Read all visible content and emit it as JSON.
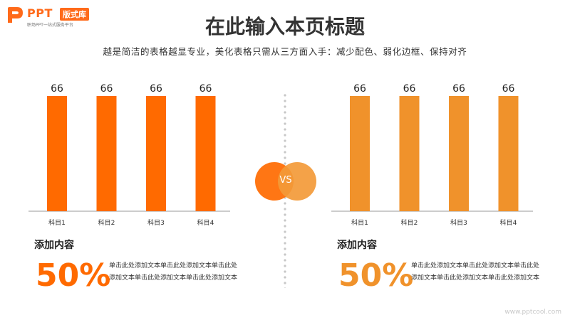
{
  "logo": {
    "brand": "PPT",
    "badge": "版式库",
    "tagline": "职场PPT一站式服务平台"
  },
  "header": {
    "title": "在此输入本页标题",
    "subtitle": "越是简洁的表格越显专业，美化表格只需从三方面入手：减少配色、弱化边框、保持对齐"
  },
  "vs": {
    "label": "VS"
  },
  "left_block": {
    "heading": "添加内容",
    "percent": "50%",
    "text": "单击此处添加文本单击此处添加文本单击此处添加文本单击此处添加文本单击此处添加文本"
  },
  "right_block": {
    "heading": "添加内容",
    "percent": "50%",
    "text": "单击此处添加文本单击此处添加文本单击此处添加文本单击此处添加文本单击此处添加文本"
  },
  "watermark": "www.pptcool.com",
  "colors": {
    "left_accent": "#ff6a00",
    "right_accent": "#f0922b"
  },
  "chart_data": [
    {
      "type": "bar",
      "categories": [
        "科目1",
        "科目2",
        "科目3",
        "科目4"
      ],
      "values": [
        66,
        66,
        66,
        66
      ],
      "ylim": [
        0,
        66
      ],
      "color": "#ff6a00",
      "grid": false,
      "legend": "none"
    },
    {
      "type": "bar",
      "categories": [
        "科目1",
        "科目2",
        "科目3",
        "科目4"
      ],
      "values": [
        66,
        66,
        66,
        66
      ],
      "ylim": [
        0,
        66
      ],
      "color": "#f0922b",
      "grid": false,
      "legend": "none"
    }
  ]
}
